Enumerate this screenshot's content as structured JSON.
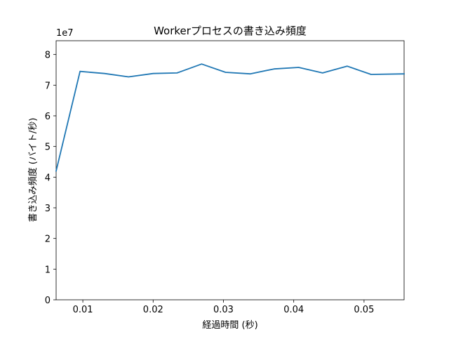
{
  "chart_data": {
    "type": "line",
    "title": "Workerプロセスの書き込み頻度",
    "xlabel": "経過時間 (秒)",
    "ylabel": "書き込み頻度 (バイト/秒)",
    "y_offset_label": "1e7",
    "xlim": [
      0.0062,
      0.0557
    ],
    "ylim": [
      0,
      8.45
    ],
    "x_ticks": [
      0.01,
      0.02,
      0.03,
      0.04,
      0.05
    ],
    "x_tick_labels": [
      "0.01",
      "0.02",
      "0.03",
      "0.04",
      "0.05"
    ],
    "y_ticks": [
      0,
      1,
      2,
      3,
      4,
      5,
      6,
      7,
      8
    ],
    "y_tick_labels": [
      "0",
      "1",
      "2",
      "3",
      "4",
      "5",
      "6",
      "7",
      "8"
    ],
    "grid": false,
    "legend": "none",
    "series": [
      {
        "color": "#1f77b4",
        "x": [
          0.0062,
          0.0096,
          0.0131,
          0.0165,
          0.02,
          0.0234,
          0.0269,
          0.0303,
          0.0338,
          0.0372,
          0.0407,
          0.0441,
          0.0476,
          0.051,
          0.0557
        ],
        "values": [
          4.2,
          7.45,
          7.38,
          7.27,
          7.38,
          7.4,
          7.69,
          7.42,
          7.37,
          7.53,
          7.58,
          7.4,
          7.62,
          7.35,
          7.37
        ]
      }
    ]
  }
}
